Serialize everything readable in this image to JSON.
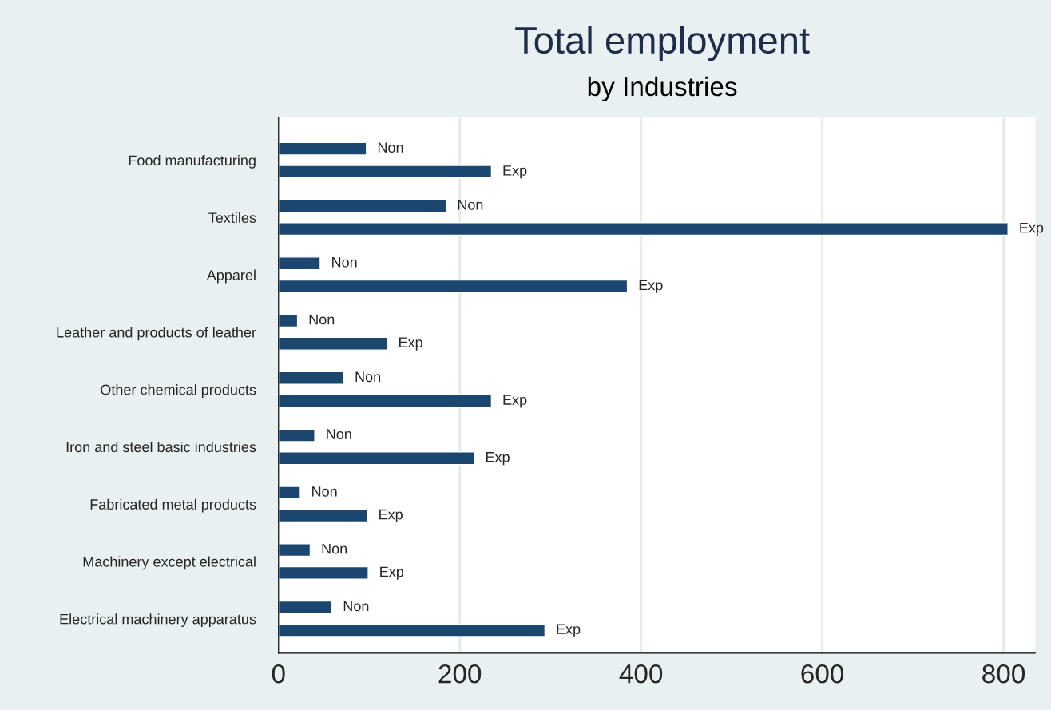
{
  "chart_data": {
    "type": "bar",
    "orientation": "horizontal",
    "title": "Total employment",
    "subtitle": "by Industries",
    "categories": [
      "Food manufacturing",
      "Textiles",
      "Apparel",
      "Leather and products of leather",
      "Other chemical products",
      "Iron and steel basic industries",
      "Fabricated metal products",
      "Machinery except electrical",
      "Electrical machinery apparatus"
    ],
    "series": [
      {
        "name": "Non",
        "color": "#1a4670",
        "values": [
          97,
          185,
          46,
          21,
          72,
          40,
          24,
          35,
          59
        ]
      },
      {
        "name": "Exp",
        "color": "#1a4670",
        "values": [
          235,
          805,
          385,
          120,
          235,
          216,
          98,
          99,
          294
        ]
      }
    ],
    "xlim": [
      0,
      835
    ],
    "xticks": [
      0,
      200,
      400,
      600,
      800
    ],
    "grid": "x",
    "legend": false
  }
}
